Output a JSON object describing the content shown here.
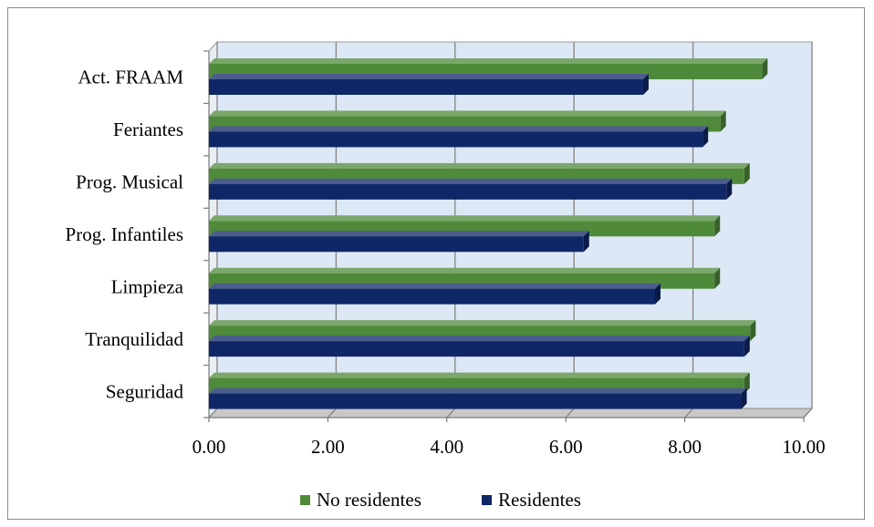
{
  "chart_data": {
    "type": "bar",
    "orientation": "horizontal",
    "three_d": true,
    "categories": [
      "Act. FRAAM",
      "Feriantes",
      "Prog. Musical",
      "Prog. Infantiles",
      "Limpieza",
      "Tranquilidad",
      "Seguridad"
    ],
    "series": [
      {
        "name": "No residentes",
        "color": "#4f8a3a",
        "values": [
          9.3,
          8.6,
          9.0,
          8.5,
          8.5,
          9.1,
          9.0
        ]
      },
      {
        "name": "Residentes",
        "color": "#0f2766",
        "values": [
          7.3,
          8.3,
          8.7,
          6.3,
          7.5,
          9.0,
          8.95
        ]
      }
    ],
    "x_ticks": [
      "0.00",
      "2.00",
      "4.00",
      "6.00",
      "8.00",
      "10.00"
    ],
    "xlim": [
      0,
      10
    ],
    "grid": true,
    "legend_position": "bottom",
    "title": "",
    "xlabel": "",
    "ylabel": ""
  },
  "colors": {
    "plot_back_wall": "#dde8f6",
    "floor": "#c8c8c8",
    "gridline": "#8a8a8a"
  }
}
